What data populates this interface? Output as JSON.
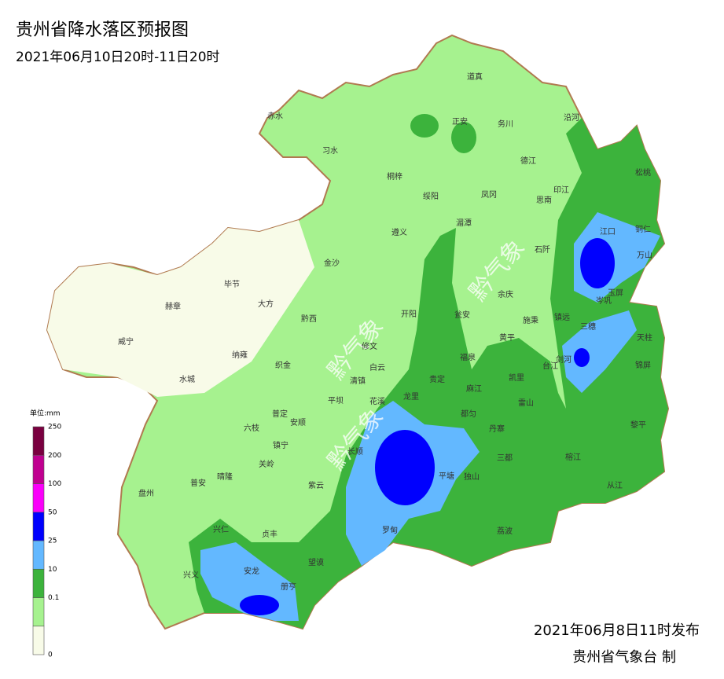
{
  "header": {
    "title": "贵州省降水落区预报图",
    "subtitle": "2021年06月10日20时-11日20时"
  },
  "legend": {
    "unit": "单位:mm",
    "ticks": [
      0,
      0.1,
      10,
      25,
      50,
      100,
      200,
      250
    ],
    "colors": [
      "#f8fbe8",
      "#a6f28f",
      "#3cb33c",
      "#63b8ff",
      "#0000fe",
      "#fa00fa",
      "#c00090",
      "#7a0040"
    ]
  },
  "watermark": "黔气象",
  "labels": [
    "赤水",
    "习水",
    "道真",
    "正安",
    "务川",
    "沿河",
    "桐梓",
    "绥阳",
    "凤冈",
    "德江",
    "思南",
    "印江",
    "松桃",
    "江口",
    "铜仁",
    "万山",
    "遵义",
    "湄潭",
    "石阡",
    "金沙",
    "毕节",
    "大方",
    "赫章",
    "黔西",
    "余庆",
    "玉屏",
    "岑巩",
    "开阳",
    "瓮安",
    "施秉",
    "镇远",
    "三穗",
    "天柱",
    "威宁",
    "纳雍",
    "修文",
    "黄平",
    "福泉",
    "剑河",
    "锦屏",
    "台江",
    "织金",
    "白云",
    "清镇",
    "贵定",
    "麻江",
    "凯里",
    "水城",
    "龙里",
    "平坝",
    "雷山",
    "都匀",
    "丹寨",
    "黎平",
    "普定",
    "安顺",
    "六枝",
    "花溪",
    "长顺",
    "镇宁",
    "关岭",
    "三都",
    "榕江",
    "平塘",
    "独山",
    "紫云",
    "晴隆",
    "普安",
    "盘州",
    "从江",
    "罗甸",
    "荔波",
    "兴仁",
    "贞丰",
    "望谟",
    "安龙",
    "兴义",
    "册亨"
  ],
  "footer": {
    "issued": "2021年06月8日11时发布",
    "producer": "贵州省气象台 制"
  }
}
